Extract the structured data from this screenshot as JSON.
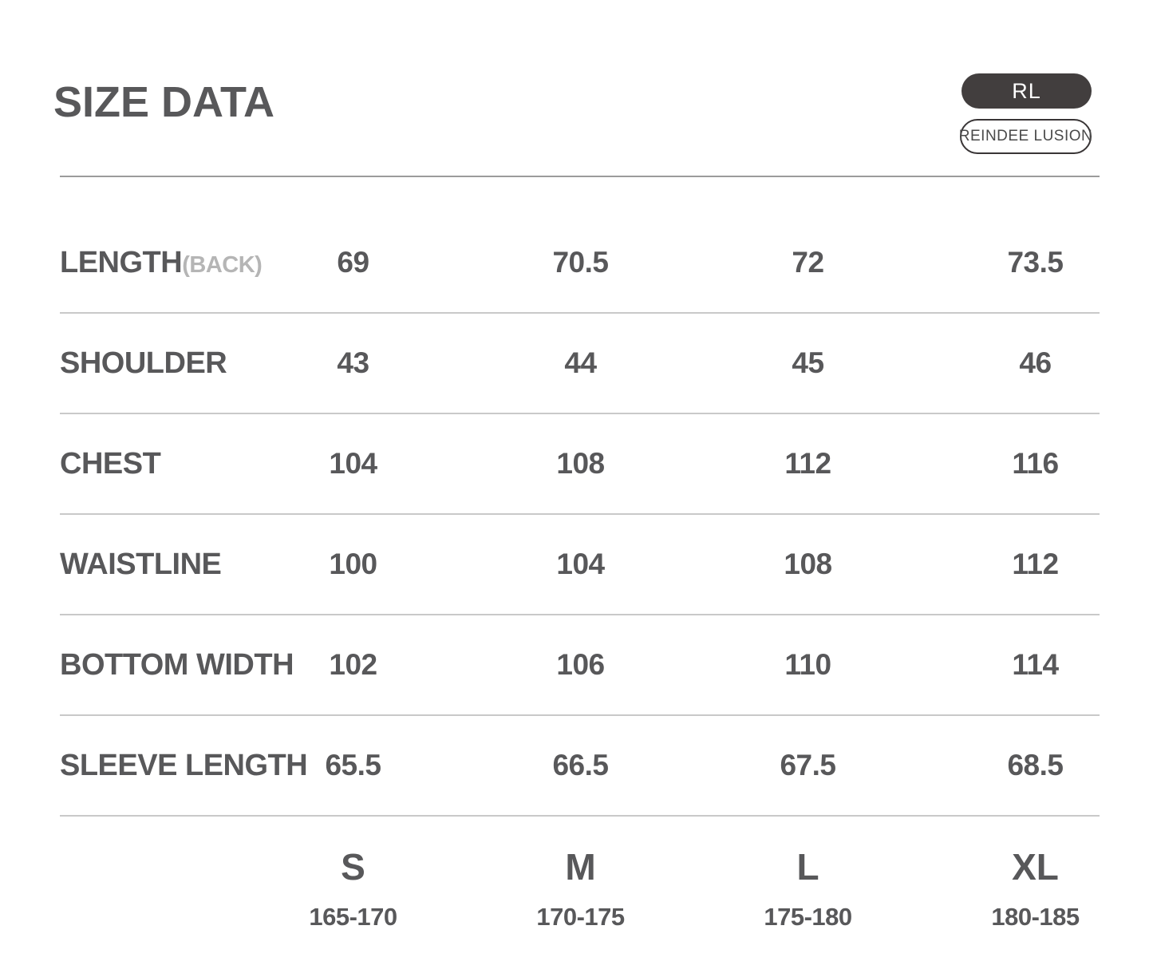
{
  "title": "SIZE DATA",
  "badges": {
    "brand_short": "RL",
    "brand_full": "REINDEE LUSION"
  },
  "chart_data": {
    "type": "table",
    "title": "SIZE DATA",
    "unit_note": "measurements as printed, no unit shown",
    "columns": [
      "S",
      "M",
      "L",
      "XL"
    ],
    "column_height_ranges": [
      "165-170",
      "170-175",
      "175-180",
      "180-185"
    ],
    "rows": [
      {
        "label": "LENGTH",
        "note": "(BACK)",
        "values": [
          "69",
          "70.5",
          "72",
          "73.5"
        ]
      },
      {
        "label": "SHOULDER",
        "note": "",
        "values": [
          "43",
          "44",
          "45",
          "46"
        ]
      },
      {
        "label": "CHEST",
        "note": "",
        "values": [
          "104",
          "108",
          "112",
          "116"
        ]
      },
      {
        "label": "WAISTLINE",
        "note": "",
        "values": [
          "100",
          "104",
          "108",
          "112"
        ]
      },
      {
        "label": "BOTTOM WIDTH",
        "note": "",
        "values": [
          "102",
          "106",
          "110",
          "114"
        ]
      },
      {
        "label": "SLEEVE LENGTH",
        "note": "",
        "values": [
          "65.5",
          "66.5",
          "67.5",
          "68.5"
        ]
      }
    ]
  },
  "colors": {
    "text_dark": "#58585a",
    "text_light": "#b5b5b5",
    "pill_background": "#423e3e",
    "pill_border": "#393536",
    "header_line": "#9b9b9b",
    "row_divider": "#c9c9c9"
  }
}
